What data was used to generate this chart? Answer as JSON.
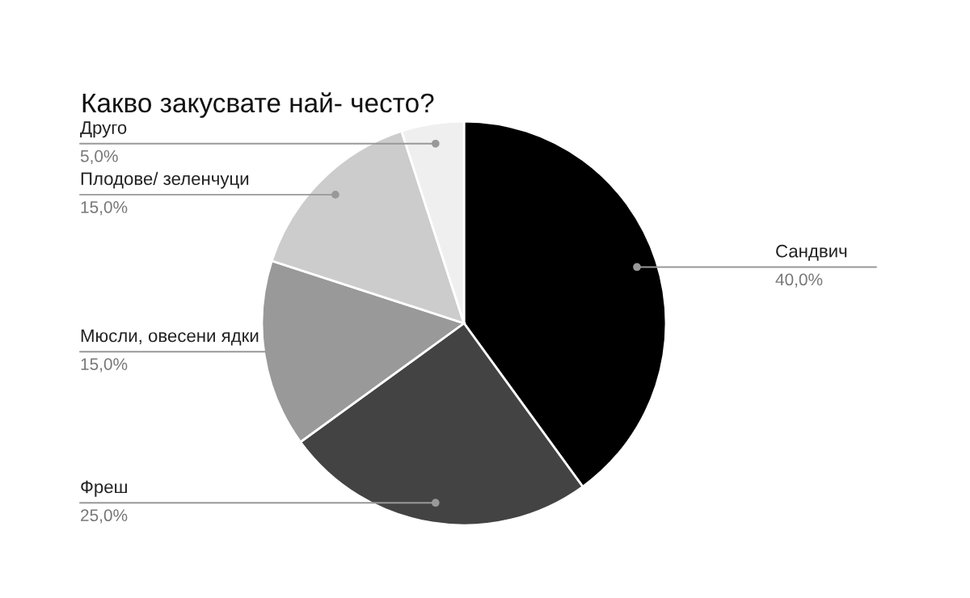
{
  "chart_data": {
    "type": "pie",
    "title": "Какво закусвате най- често?",
    "categories": [
      "Сандвич",
      "Фреш",
      "Мюсли, овесени ядки",
      "Плодове/ зеленчуци",
      "Друго"
    ],
    "values": [
      40,
      25,
      15,
      15,
      5
    ],
    "colors": [
      "#000000",
      "#434343",
      "#999999",
      "#cccccc",
      "#efefef"
    ],
    "value_labels": [
      "40,0%",
      "25,0%",
      "15,0%",
      "15,0%",
      "5,0%"
    ]
  }
}
